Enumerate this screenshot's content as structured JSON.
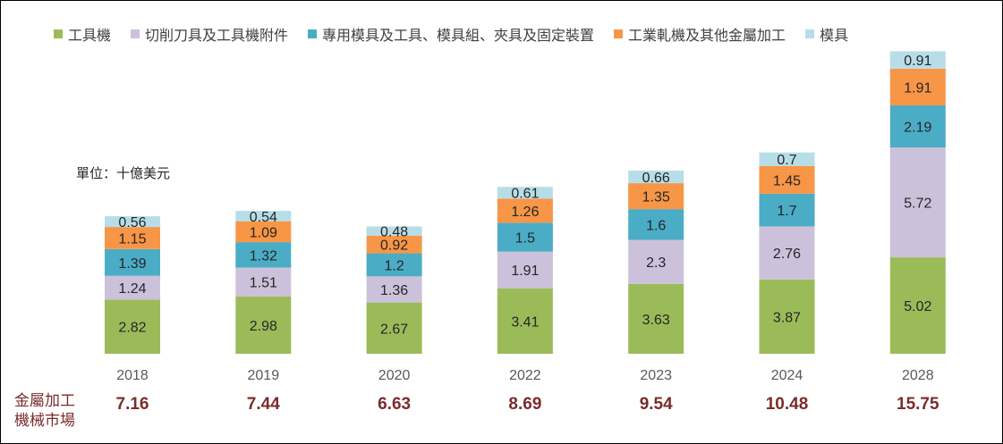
{
  "chart_data": {
    "type": "bar",
    "stacked": true,
    "unit_label": "單位：十億美元",
    "categories": [
      "2018",
      "2019",
      "2020",
      "2022",
      "2023",
      "2024",
      "2028"
    ],
    "series": [
      {
        "name": "工具機",
        "color": "#9bbb59",
        "values": [
          2.82,
          2.98,
          2.67,
          3.41,
          3.63,
          3.87,
          5.02
        ]
      },
      {
        "name": "切削刀具及工具機附件",
        "color": "#ccc1da",
        "values": [
          1.24,
          1.51,
          1.36,
          1.91,
          2.3,
          2.76,
          5.72
        ]
      },
      {
        "name": "專用模具及工具、模具組、夾具及固定裝置",
        "color": "#4bacc6",
        "values": [
          1.39,
          1.32,
          1.2,
          1.5,
          1.6,
          1.7,
          2.19
        ]
      },
      {
        "name": "工業軋機及其他金屬加工",
        "color": "#f79646",
        "values": [
          1.15,
          1.09,
          0.92,
          1.26,
          1.35,
          1.45,
          1.91
        ]
      },
      {
        "name": "模具",
        "color": "#b7dee8",
        "values": [
          0.56,
          0.54,
          0.48,
          0.61,
          0.66,
          0.7,
          0.91
        ]
      }
    ],
    "totals_label": "金屬加工機械市場",
    "totals_label_lines": [
      "金屬加工",
      "機械市場"
    ],
    "totals": [
      "7.16",
      "7.44",
      "6.63",
      "8.69",
      "9.54",
      "10.48",
      "15.75"
    ],
    "ylim": [
      0,
      16
    ],
    "grid": false,
    "legend_position": "top"
  }
}
